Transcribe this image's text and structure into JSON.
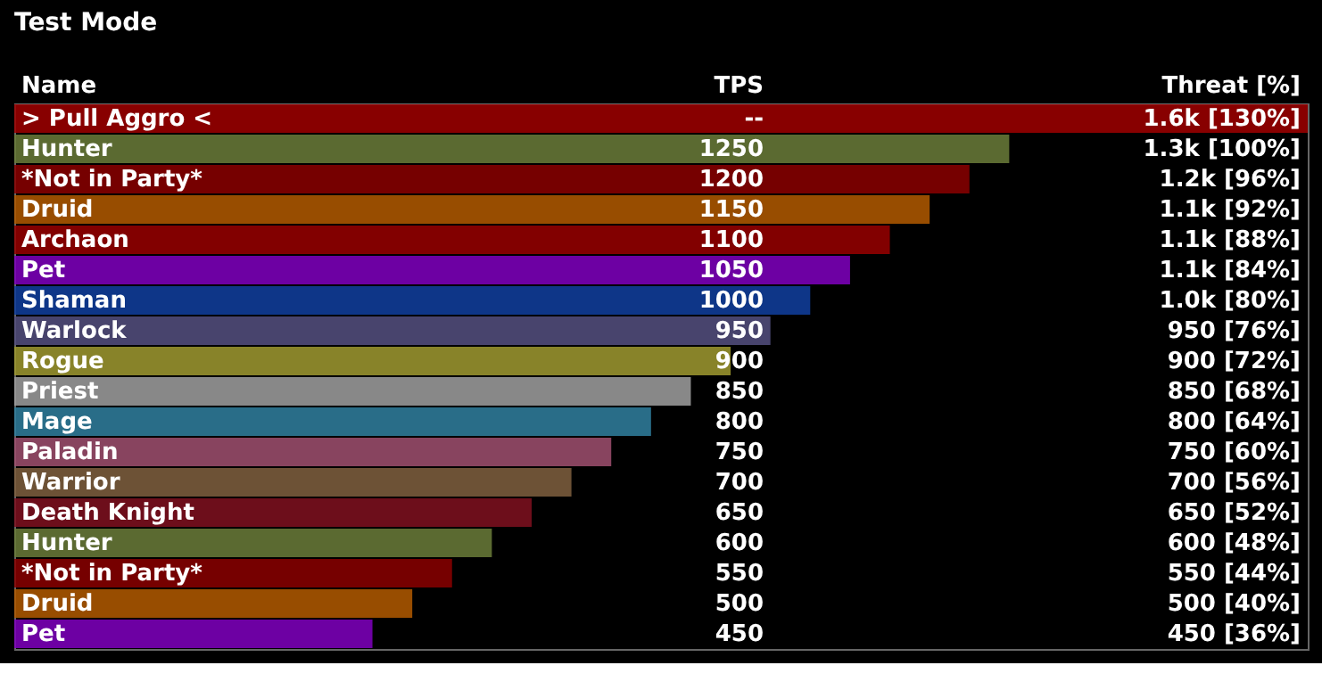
{
  "chart_data": {
    "type": "bar",
    "orientation": "horizontal",
    "title": "Test Mode",
    "ylabel": "Name",
    "xlabel": "Threat [%]",
    "xlim": [
      0,
      130
    ],
    "categories": [
      "> Pull Aggro <",
      "Hunter",
      "*Not in Party*",
      "Druid",
      "Archaon",
      "Pet",
      "Shaman",
      "Warlock",
      "Rogue",
      "Priest",
      "Mage",
      "Paladin",
      "Warrior",
      "Death Knight",
      "Hunter",
      "*Not in Party*",
      "Druid",
      "Pet"
    ],
    "series": [
      {
        "values": [
          130,
          100,
          96,
          92,
          88,
          84,
          80,
          76,
          72,
          68,
          64,
          60,
          56,
          52,
          48,
          44,
          40,
          36
        ],
        "colors": [
          "#a00000",
          "#6b7d3a",
          "#8b0000",
          "#b35a00",
          "#990000",
          "#8000c0",
          "#1040a0",
          "#555080",
          "#a09a30",
          "#a0a0a0",
          "#3080a0",
          "#a05070",
          "#806040",
          "#801020",
          "#6b7d3a",
          "#8b0000",
          "#b35a00",
          "#8000c0"
        ],
        "value_labels": [
          "1.6k [130%]",
          "1.3k [100%]",
          "1.2k [96%]",
          "1.1k [92%]",
          "1.1k [88%]",
          "1.1k [84%]",
          "1.0k [80%]",
          "950 [76%]",
          "900 [72%]",
          "850 [68%]",
          "800 [64%]",
          "750 [60%]",
          "700 [56%]",
          "650 [52%]",
          "600 [48%]",
          "550 [44%]",
          "500 [40%]",
          "450 [36%]"
        ]
      },
      {
        "name": "TPS",
        "type": "other",
        "values": [
          null,
          null,
          null,
          null,
          null,
          null,
          null,
          null,
          null,
          null,
          null,
          null,
          null,
          null,
          null,
          null,
          null,
          null
        ],
        "value_labels": [
          "--",
          "1250",
          "1200",
          "1150",
          "1100",
          "1050",
          "1000",
          "950",
          "900",
          "850",
          "800",
          "750",
          "700",
          "650",
          "600",
          "550",
          "500",
          "450"
        ]
      }
    ]
  }
}
